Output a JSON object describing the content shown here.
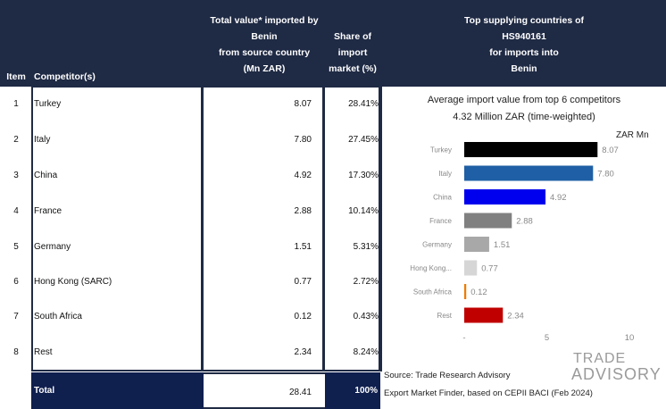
{
  "header": {
    "item": "Item",
    "competitors": "Competitor(s)",
    "value_lines": [
      "Total value* imported by",
      "Benin",
      "from source country",
      "(Mn ZAR)"
    ],
    "share_lines": [
      "Share of",
      "import",
      "market (%)"
    ],
    "chart_lines": [
      "Top supplying countries of",
      "HS940161",
      "for imports into",
      "Benin"
    ]
  },
  "rows": [
    {
      "item": "1",
      "name": "Turkey",
      "value": "8.07",
      "share": "28.41%"
    },
    {
      "item": "2",
      "name": "Italy",
      "value": "7.80",
      "share": "27.45%"
    },
    {
      "item": "3",
      "name": "China",
      "value": "4.92",
      "share": "17.30%"
    },
    {
      "item": "4",
      "name": "France",
      "value": "2.88",
      "share": "10.14%"
    },
    {
      "item": "5",
      "name": "Germany",
      "value": "1.51",
      "share": "5.31%"
    },
    {
      "item": "6",
      "name": "Hong Kong (SARC)",
      "value": "0.77",
      "share": "2.72%"
    },
    {
      "item": "7",
      "name": "South Africa",
      "value": "0.12",
      "share": "0.43%"
    },
    {
      "item": "8",
      "name": "Rest",
      "value": "2.34",
      "share": "8.24%"
    }
  ],
  "total": {
    "label": "Total",
    "value": "28.41",
    "share": "100%"
  },
  "chart_data": {
    "type": "bar",
    "orientation": "horizontal",
    "title": "Average import value from top 6 competitors",
    "subtitle": "4.32 Million ZAR (time-weighted)",
    "unit_label": "ZAR Mn",
    "categories": [
      "Turkey",
      "Italy",
      "China",
      "France",
      "Germany",
      "Hong Kong...",
      "South Africa",
      "Rest"
    ],
    "values": [
      8.07,
      7.8,
      4.92,
      2.88,
      1.51,
      0.77,
      0.12,
      2.34
    ],
    "value_labels": [
      "8.07",
      "7.80",
      "4.92",
      "2.88",
      "1.51",
      "0.77",
      "0.12",
      "2.34"
    ],
    "colors": [
      "#000000",
      "#1f5fa5",
      "#0000ee",
      "#808080",
      "#a8a8a8",
      "#d6d6d6",
      "#f07a00",
      "#c00000"
    ],
    "xlim": [
      0,
      10
    ],
    "xticks": [
      0,
      5,
      10
    ],
    "xtick_labels": [
      "-",
      "5",
      "10"
    ],
    "grid": false
  },
  "source": {
    "line1": "Source: Trade Research Advisory",
    "line2": "Export Market Finder, based on CEPII BACI (Feb 2024)"
  },
  "logo": {
    "top": "TRADE",
    "bottom": "ADVISORY"
  }
}
